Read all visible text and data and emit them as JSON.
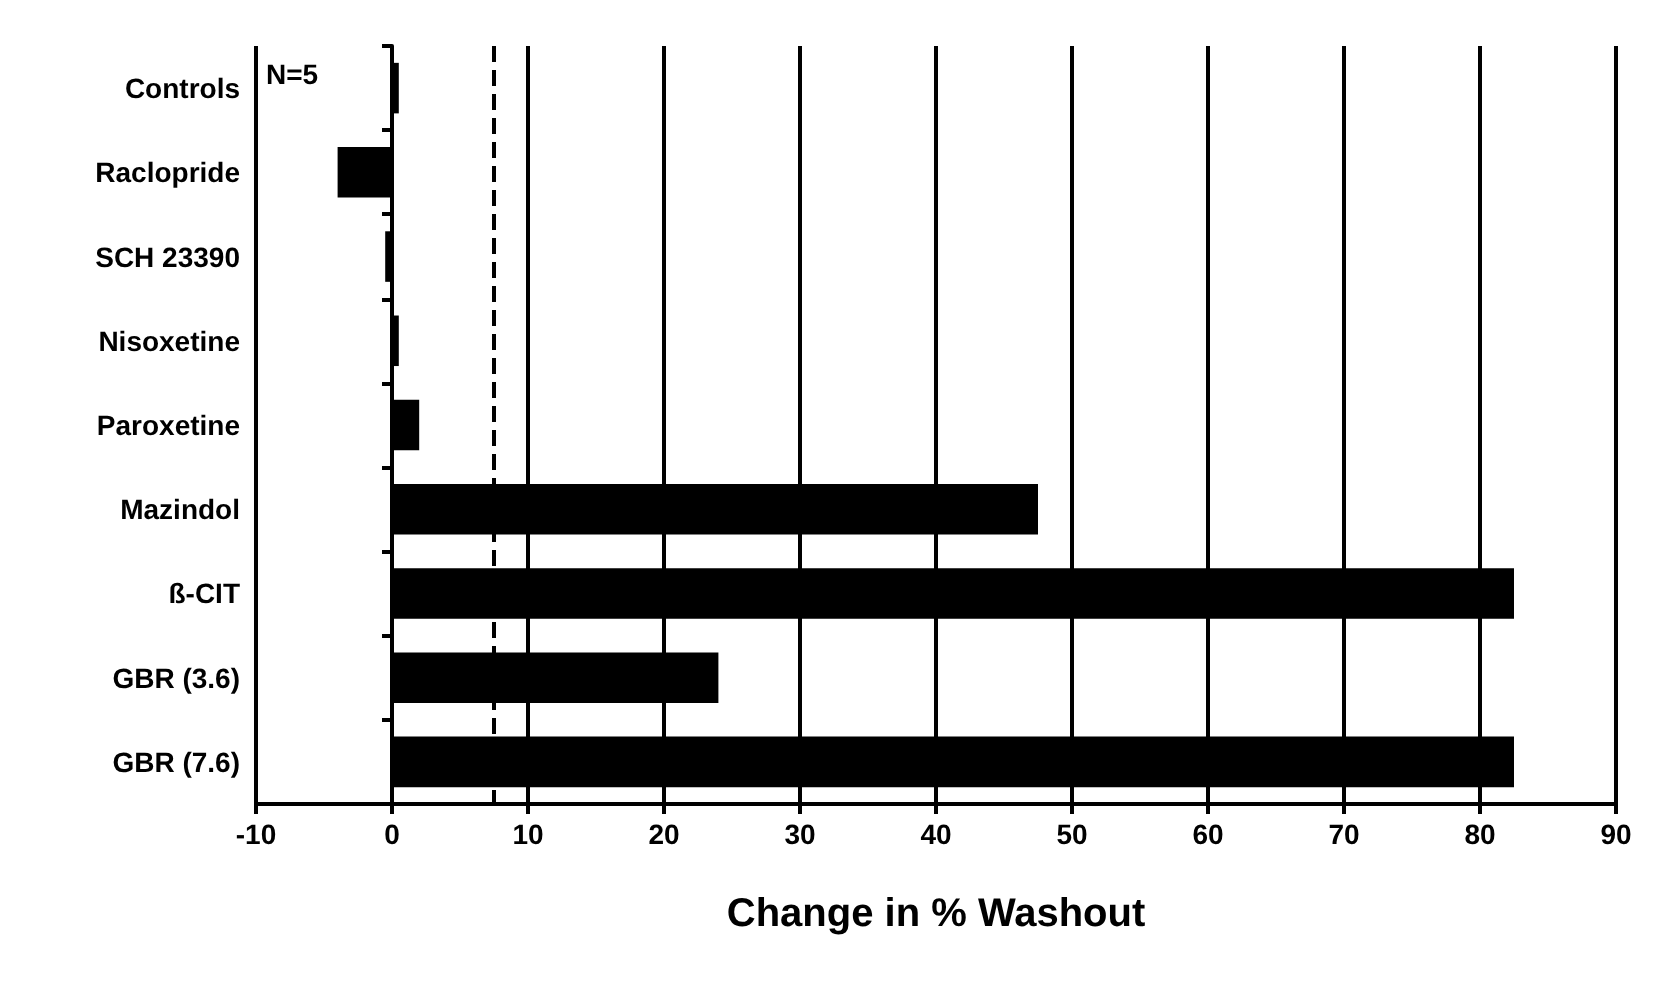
{
  "chart_data": {
    "type": "bar",
    "orientation": "horizontal",
    "xlabel": "Change in % Washout",
    "categories": [
      "Controls",
      "Raclopride",
      "SCH 23390",
      "Nisoxetine",
      "Paroxetine",
      "Mazindol",
      "ß-CIT",
      "GBR (3.6)",
      "GBR (7.6)"
    ],
    "values": [
      0.5,
      -4,
      -0.5,
      0.5,
      2,
      47.5,
      82.5,
      24,
      82.5
    ],
    "color": "#000000",
    "xlim": [
      -10,
      90
    ],
    "xticks": [
      -10,
      0,
      10,
      20,
      30,
      40,
      50,
      60,
      70,
      80,
      90
    ],
    "grid": "x",
    "ref_lines": [
      {
        "axis": "x",
        "value": 7.5,
        "line_style": "dashed",
        "color": "#000000"
      }
    ],
    "annotations": [
      "N=5"
    ]
  }
}
